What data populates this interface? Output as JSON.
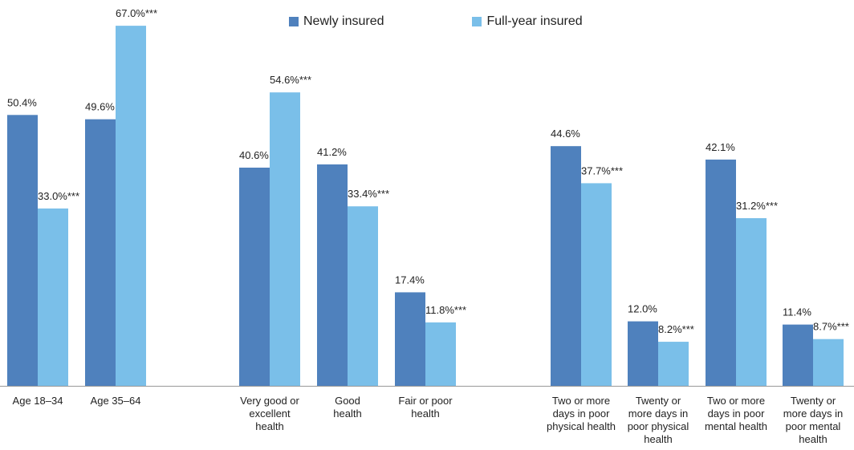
{
  "chart_data": {
    "type": "bar",
    "title": "",
    "xlabel": "",
    "ylabel": "",
    "ylim": [
      0,
      70
    ],
    "grid": false,
    "legend_placement": "top-center",
    "series": [
      {
        "name": "Newly insured",
        "color": "#4f81bd"
      },
      {
        "name": "Full-year insured",
        "color": "#7abfe9"
      }
    ],
    "groups": [
      {
        "category_lines": [
          "Age 18–34"
        ],
        "values": [
          50.4,
          33.0
        ],
        "labels": [
          "50.4%",
          "33.0%***"
        ]
      },
      {
        "category_lines": [
          "Age 35–64"
        ],
        "values": [
          49.6,
          67.0
        ],
        "labels": [
          "49.6%",
          "67.0%***"
        ]
      },
      {
        "category_lines": [
          "Very good or",
          "excellent",
          "health"
        ],
        "values": [
          40.6,
          54.6
        ],
        "labels": [
          "40.6%",
          "54.6%***"
        ]
      },
      {
        "category_lines": [
          "Good",
          "health"
        ],
        "values": [
          41.2,
          33.4
        ],
        "labels": [
          "41.2%",
          "33.4%***"
        ]
      },
      {
        "category_lines": [
          "Fair or poor",
          "health"
        ],
        "values": [
          17.4,
          11.8
        ],
        "labels": [
          "17.4%",
          "11.8%***"
        ]
      },
      {
        "category_lines": [
          "Two or more",
          "days in poor",
          "physical health"
        ],
        "values": [
          44.6,
          37.7
        ],
        "labels": [
          "44.6%",
          "37.7%***"
        ]
      },
      {
        "category_lines": [
          "Twenty or",
          "more days in",
          "poor physical",
          "health"
        ],
        "values": [
          12.0,
          8.2
        ],
        "labels": [
          "12.0%",
          "8.2%***"
        ]
      },
      {
        "category_lines": [
          "Two or more",
          "days in poor",
          "mental health"
        ],
        "values": [
          42.1,
          31.2
        ],
        "labels": [
          "42.1%",
          "31.2%***"
        ]
      },
      {
        "category_lines": [
          "Twenty or",
          "more days in",
          "poor mental",
          "health"
        ],
        "values": [
          11.4,
          8.7
        ],
        "labels": [
          "11.4%",
          "8.7%***"
        ]
      }
    ]
  }
}
